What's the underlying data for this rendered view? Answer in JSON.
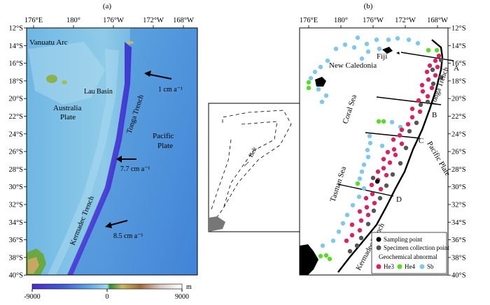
{
  "panel_a": {
    "label": "(a)",
    "lon_ticks": [
      "176°E",
      "180°",
      "176°W",
      "172°W",
      "168°W"
    ],
    "lat_ticks": [
      "12°S",
      "14°S",
      "16°S",
      "18°S",
      "20°S",
      "22°S",
      "24°S",
      "26°S",
      "28°S",
      "30°S",
      "32°S",
      "34°S",
      "36°S",
      "38°S",
      "40°S"
    ],
    "labels": {
      "vanuatu_arc": "Vanuatu Arc",
      "lau_basin": "Lau Basin",
      "australia_plate_line1": "Australia",
      "australia_plate_line2": "Plate",
      "tonga_trench": "Tonga Trench",
      "pacific_plate_line1": "Pacific",
      "pacific_plate_line2": "Plate",
      "kermadec_trench": "Kermadec Trench"
    },
    "velocities": [
      "1 cm a⁻¹",
      "7.7 cm a⁻¹",
      "8.5 cm a⁻¹"
    ],
    "colorbar": {
      "unit": "m",
      "min_label": "-9000",
      "mid_label": "0",
      "max_label": "9000",
      "low_color": "#4b2bd0",
      "mid_color": "#7ec8e8",
      "land_color": "#c8a060",
      "high_color": "#ffffff"
    }
  },
  "inset": {
    "belt_label": "Belt"
  },
  "panel_b": {
    "label": "(b)",
    "lon_ticks": [
      "176°E",
      "180°",
      "176°W",
      "172°W",
      "168°W"
    ],
    "lat_ticks": [
      "12°S",
      "14°S",
      "16°S",
      "18°S",
      "20°S",
      "22°S",
      "24°S",
      "26°S",
      "28°S",
      "30°S",
      "32°S",
      "34°S",
      "36°S",
      "38°S",
      "40°S"
    ],
    "labels": {
      "fiji": "Fiji",
      "new_caledonia": "New Caledonia",
      "coral_sea": "Coral Sea",
      "tasman_sea": "Tasman Sea",
      "tonga_trench": "Tonga Trench",
      "pacific_plate": "Pacific Plate",
      "kermadec_trench": "Kermadec Trench"
    },
    "sections": [
      "A",
      "B",
      "C",
      "D"
    ],
    "legend": {
      "sampling_point": "Sampling point",
      "specimen_point": "Specimen collection point",
      "geochem_title": "Geochemical abnormal",
      "he3": "He3",
      "he4": "He4",
      "sb": "Sb"
    },
    "colors": {
      "he3": "#e0205a",
      "he4": "#55dd22",
      "sb": "#7ec8f0",
      "specimen": "#555555",
      "sampling": "#000000"
    }
  }
}
